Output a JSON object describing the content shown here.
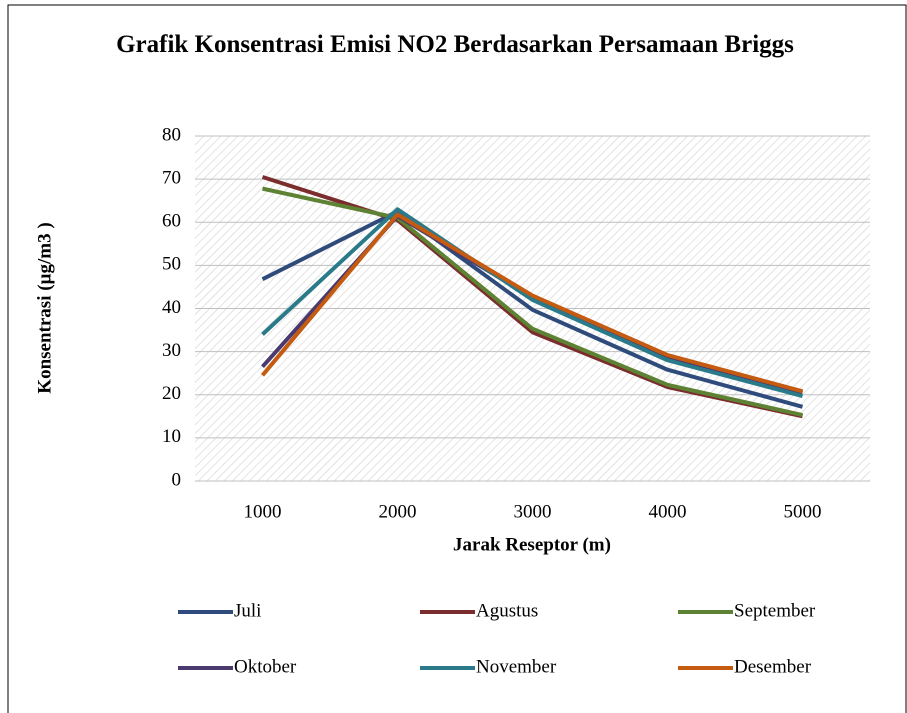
{
  "chart_data": {
    "type": "line",
    "title": "Grafik Konsentrasi Emisi NO2 Berdasarkan Persamaan Briggs",
    "x_label": "Jarak Reseptor (m)",
    "y_label": "Konsentrasi (µg/m3 )",
    "categories": [
      "1000",
      "2000",
      "3000",
      "4000",
      "5000"
    ],
    "series": [
      {
        "name": "Juli",
        "color": "#2f4b7c",
        "values": [
          46.8,
          62.5,
          39.7,
          25.8,
          17.2
        ]
      },
      {
        "name": "Agustus",
        "color": "#7b2c2c",
        "values": [
          70.5,
          60.5,
          34.5,
          21.8,
          15.0
        ]
      },
      {
        "name": "September",
        "color": "#5e8233",
        "values": [
          67.8,
          61.0,
          35.3,
          22.3,
          15.3
        ]
      },
      {
        "name": "Oktober",
        "color": "#4b3a6e",
        "values": [
          26.5,
          61.5,
          42.5,
          28.8,
          20.5
        ]
      },
      {
        "name": "November",
        "color": "#2a7a8a",
        "values": [
          34.0,
          63.0,
          42.0,
          28.0,
          19.7
        ]
      },
      {
        "name": "Desember",
        "color": "#c55a11",
        "values": [
          24.5,
          61.8,
          43.0,
          29.2,
          20.8
        ]
      }
    ],
    "ylim": [
      0,
      80
    ],
    "yticks": [
      0,
      10,
      20,
      30,
      40,
      50,
      60,
      70,
      80
    ],
    "grid": true
  }
}
